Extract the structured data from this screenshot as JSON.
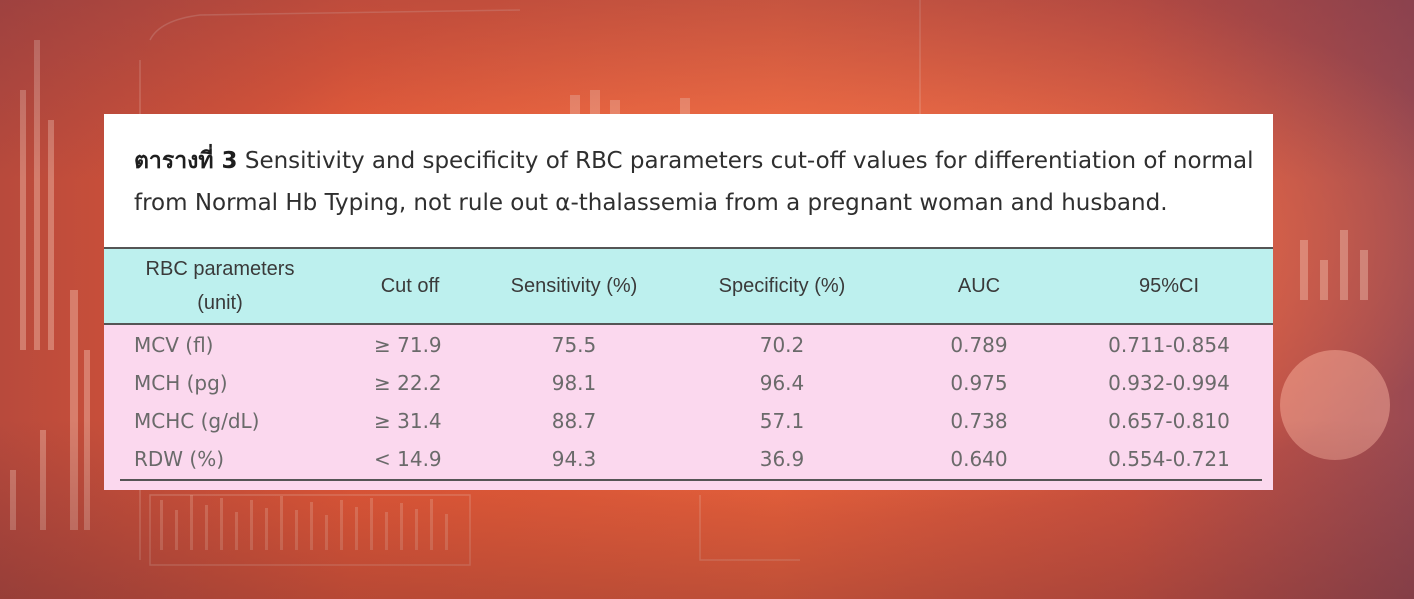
{
  "caption": {
    "label": "ตารางที่ 3",
    "text": " Sensitivity and specificity of RBC parameters cut-off values for differentiation of normal from Normal Hb Typing, not rule out α-thalassemia from a pregnant woman and husband."
  },
  "table": {
    "headers": {
      "param_line1": "RBC parameters",
      "param_line2": "(unit)",
      "cutoff": "Cut off",
      "sensitivity": "Sensitivity (%)",
      "specificity": "Specificity (%)",
      "auc": "AUC",
      "ci": "95%CI"
    },
    "rows": [
      {
        "param": "MCV (fl)",
        "cutoff": "≥ 71.9",
        "sensitivity": "75.5",
        "specificity": "70.2",
        "auc": "0.789",
        "ci": "0.711-0.854"
      },
      {
        "param": "MCH (pg)",
        "cutoff": "≥ 22.2",
        "sensitivity": "98.1",
        "specificity": "96.4",
        "auc": "0.975",
        "ci": "0.932-0.994"
      },
      {
        "param": "MCHC (g/dL)",
        "cutoff": "≥ 31.4",
        "sensitivity": "88.7",
        "specificity": "57.1",
        "auc": "0.738",
        "ci": "0.657-0.810"
      },
      {
        "param": "RDW (%)",
        "cutoff": "< 14.9",
        "sensitivity": "94.3",
        "specificity": "36.9",
        "auc": "0.640",
        "ci": "0.554-0.721"
      }
    ]
  },
  "colors": {
    "header_bg": "#bdf0ee",
    "body_bg": "#fbd8ee",
    "background_accent": "#f4643a"
  }
}
